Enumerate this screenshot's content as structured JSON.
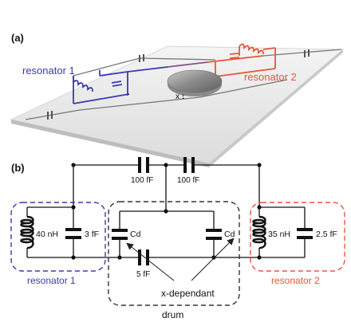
{
  "panel_a": {
    "label": "(a)",
    "resonator1": "resonator 1",
    "resonator2": "resonator 2",
    "displacement": "x",
    "displacement_arrow": "↕"
  },
  "panel_b": {
    "label": "(b)",
    "coupling_cap_left": "100 fF",
    "coupling_cap_right": "100 fF",
    "r1_inductor": "40 nH",
    "r1_cap": "3 fF",
    "cd_left": "Cd",
    "cd_right": "Cd",
    "mid_cap": "5 fF",
    "r2_inductor": "35 nH",
    "r2_cap": "2.5 fF",
    "box_r1": "resonator 1",
    "box_r2": "resonator 2",
    "annotation": "x-dependant",
    "box_drum": "drum"
  },
  "colors": {
    "resonator1": "#3a3ab0",
    "resonator2": "#e8553a",
    "drum_box": "#333333"
  }
}
